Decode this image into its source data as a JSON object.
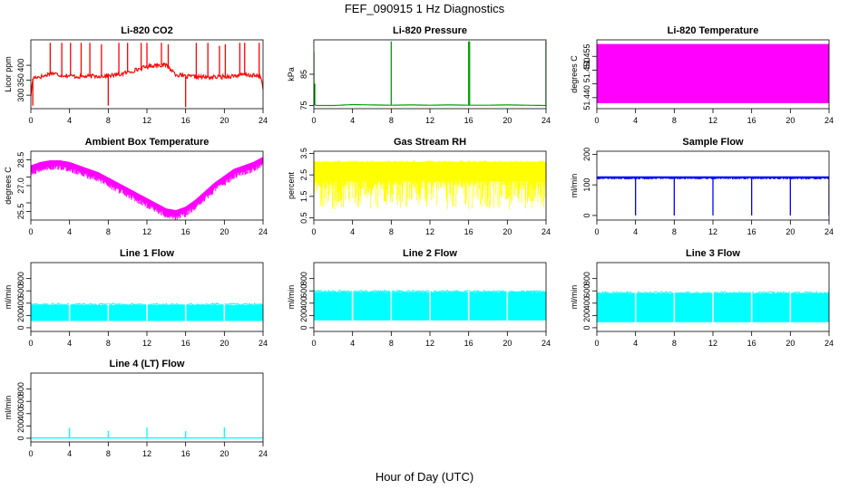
{
  "figure": {
    "title": "FEF_090915  1 Hz Diagnostics",
    "xlabel": "Hour of Day (UTC)"
  },
  "chart_data": [
    {
      "type": "line",
      "title": "Li-820 CO2",
      "ylabel": "Licor ppm",
      "xlabel": "",
      "xlim": [
        0,
        24
      ],
      "ylim": [
        255,
        485
      ],
      "xticks": [
        0,
        4,
        8,
        12,
        16,
        20,
        24
      ],
      "yticks": [
        300,
        350,
        400
      ],
      "color": "#ff0000",
      "series": [
        {
          "x": [
            0,
            0.2,
            0.4,
            1,
            1.5,
            2,
            3,
            4,
            5,
            6,
            7,
            8,
            9,
            10,
            11,
            12,
            13,
            14,
            15,
            16,
            17,
            18,
            19,
            20,
            21,
            22,
            23,
            23.8,
            24
          ],
          "y": [
            300,
            355,
            360,
            362,
            365,
            375,
            368,
            365,
            362,
            363,
            364,
            365,
            368,
            376,
            386,
            395,
            402,
            400,
            370,
            362,
            362,
            360,
            360,
            362,
            365,
            368,
            366,
            360,
            325
          ]
        }
      ],
      "spikes": [
        {
          "x": 0.2,
          "y": 265
        },
        {
          "x": 2.0,
          "y": 475
        },
        {
          "x": 3.2,
          "y": 475
        },
        {
          "x": 4.1,
          "y": 475
        },
        {
          "x": 5.2,
          "y": 475
        },
        {
          "x": 6.1,
          "y": 475
        },
        {
          "x": 7.3,
          "y": 470
        },
        {
          "x": 8.0,
          "y": 265
        },
        {
          "x": 9.1,
          "y": 475
        },
        {
          "x": 10.0,
          "y": 475
        },
        {
          "x": 11.4,
          "y": 475
        },
        {
          "x": 12.0,
          "y": 475
        },
        {
          "x": 13.5,
          "y": 475
        },
        {
          "x": 14.2,
          "y": 470
        },
        {
          "x": 16.0,
          "y": 260
        },
        {
          "x": 17.1,
          "y": 475
        },
        {
          "x": 18.3,
          "y": 475
        },
        {
          "x": 19.5,
          "y": 465
        },
        {
          "x": 20.1,
          "y": 470
        },
        {
          "x": 21.6,
          "y": 475
        },
        {
          "x": 22.1,
          "y": 475
        },
        {
          "x": 23.6,
          "y": 475
        }
      ]
    },
    {
      "type": "line",
      "title": "Li-820 Pressure",
      "ylabel": "kPa",
      "xlabel": "",
      "xlim": [
        0,
        24
      ],
      "ylim": [
        74,
        96
      ],
      "xticks": [
        0,
        4,
        8,
        12,
        16,
        20,
        24
      ],
      "yticks": [
        75,
        85
      ],
      "color": "#00a000",
      "series": [
        {
          "x": [
            0,
            0.3,
            2,
            4,
            6,
            8,
            10,
            12,
            14,
            16,
            18,
            20,
            22,
            24
          ],
          "y": [
            75.4,
            75.0,
            75.0,
            75.3,
            75.2,
            75.1,
            75.2,
            75.1,
            75.2,
            75.1,
            75.1,
            75.2,
            75.1,
            75.0
          ]
        }
      ],
      "spikes": [
        {
          "x": 0.0,
          "y": 92
        },
        {
          "x": 0.1,
          "y": 82
        },
        {
          "x": 8.0,
          "y": 95.5
        },
        {
          "x": 16.0,
          "y": 95.5
        },
        {
          "x": 16.1,
          "y": 95.5
        },
        {
          "x": 24.0,
          "y": 95.5
        }
      ]
    },
    {
      "type": "area",
      "title": "Li-820 Temperature",
      "ylabel": "degrees C",
      "xlabel": "",
      "xlim": [
        0,
        24
      ],
      "ylim": [
        51.436,
        51.461
      ],
      "xticks": [
        0,
        4,
        8,
        12,
        16,
        20,
        24
      ],
      "yticks": [
        51.44,
        51.445,
        51.45,
        51.455
      ],
      "ytick_labels": [
        "51.440",
        "",
        "51.450",
        "51.455"
      ],
      "color": "#ff00ff",
      "band": {
        "x": [
          0,
          24
        ],
        "low": 51.438,
        "high": 51.4595
      }
    },
    {
      "type": "line",
      "title": "Ambient Box Temperature",
      "ylabel": "degrees C",
      "xlabel": "",
      "xlim": [
        0,
        24
      ],
      "ylim": [
        25.0,
        29.0
      ],
      "xticks": [
        0,
        4,
        8,
        12,
        16,
        20,
        24
      ],
      "yticks": [
        25.5,
        26.0,
        27.0,
        27.5,
        28.5
      ],
      "ytick_labels": [
        "25.5",
        "",
        "27.0",
        "",
        "28.5"
      ],
      "color": "#ff00ff",
      "series": [
        {
          "x": [
            0,
            1,
            2,
            3,
            4,
            5,
            6,
            7,
            8,
            9,
            10,
            11,
            12,
            13,
            14,
            15,
            16,
            17,
            18,
            19,
            20,
            21,
            22,
            23,
            24
          ],
          "y": [
            28.0,
            28.2,
            28.3,
            28.3,
            28.2,
            28.0,
            27.8,
            27.6,
            27.3,
            27.0,
            26.7,
            26.4,
            26.1,
            25.8,
            25.5,
            25.4,
            25.6,
            26.0,
            26.5,
            27.0,
            27.4,
            27.8,
            28.0,
            28.2,
            28.5
          ]
        }
      ],
      "noise_amplitude": 0.35
    },
    {
      "type": "line",
      "title": "Gas Stream RH",
      "ylabel": "percent",
      "xlabel": "",
      "xlim": [
        0,
        24
      ],
      "ylim": [
        0.4,
        3.6
      ],
      "xticks": [
        0,
        4,
        8,
        12,
        16,
        20,
        24
      ],
      "yticks": [
        0.5,
        1.5,
        2.5,
        3.5
      ],
      "color": "#ffff00",
      "band": {
        "x": [
          0,
          24
        ],
        "low": 0.9,
        "high": 3.1
      },
      "dips": 60
    },
    {
      "type": "line",
      "title": "Sample Flow",
      "ylabel": "ml/min",
      "xlabel": "",
      "xlim": [
        0,
        24
      ],
      "ylim": [
        -15,
        210
      ],
      "xticks": [
        0,
        4,
        8,
        12,
        16,
        20,
        24
      ],
      "yticks": [
        0,
        100,
        200
      ],
      "color": "#0000ff",
      "series": [
        {
          "x": [
            0,
            24
          ],
          "y": [
            125,
            125
          ]
        }
      ],
      "noise_amplitude": 6,
      "spikes": [
        {
          "x": 4.0,
          "y": 0
        },
        {
          "x": 8.0,
          "y": 0
        },
        {
          "x": 12.0,
          "y": 0
        },
        {
          "x": 16.0,
          "y": 0
        },
        {
          "x": 20.0,
          "y": 0
        },
        {
          "x": 24.0,
          "y": 0
        }
      ]
    },
    {
      "type": "area",
      "title": "Line 1 Flow",
      "ylabel": "ml/min",
      "xlabel": "",
      "xlim": [
        0,
        24
      ],
      "ylim": [
        -60,
        1060
      ],
      "xticks": [
        0,
        4,
        8,
        12,
        16,
        20,
        24
      ],
      "yticks": [
        0,
        200,
        400,
        600,
        800
      ],
      "color": "#00ffff",
      "band": {
        "x": [
          0,
          24
        ],
        "low": 110,
        "high": 370
      },
      "gaps": [
        4,
        8,
        12,
        16,
        20
      ]
    },
    {
      "type": "area",
      "title": "Line 2 Flow",
      "ylabel": "ml/min",
      "xlabel": "",
      "xlim": [
        0,
        24
      ],
      "ylim": [
        -60,
        1060
      ],
      "xticks": [
        0,
        4,
        8,
        12,
        16,
        20,
        24
      ],
      "yticks": [
        0,
        200,
        400,
        600,
        800
      ],
      "color": "#00ffff",
      "band": {
        "x": [
          0,
          24
        ],
        "low": 120,
        "high": 580
      },
      "gaps": [
        4,
        8,
        12,
        16,
        20
      ]
    },
    {
      "type": "area",
      "title": "Line 3 Flow",
      "ylabel": "ml/min",
      "xlabel": "",
      "xlim": [
        0,
        24
      ],
      "ylim": [
        -60,
        1060
      ],
      "xticks": [
        0,
        4,
        8,
        12,
        16,
        20,
        24
      ],
      "yticks": [
        0,
        200,
        400,
        600,
        800
      ],
      "color": "#00ffff",
      "band": {
        "x": [
          0,
          24
        ],
        "low": 90,
        "high": 560
      },
      "gaps": [
        4,
        8,
        12,
        16,
        20
      ]
    },
    {
      "type": "line",
      "title": "Line 4 (LT) Flow",
      "ylabel": "ml/min",
      "xlabel": "",
      "xlim": [
        0,
        24
      ],
      "ylim": [
        -60,
        1060
      ],
      "xticks": [
        0,
        4,
        8,
        12,
        16,
        20,
        24
      ],
      "yticks": [
        0,
        200,
        400,
        600,
        800
      ],
      "color": "#00ffff",
      "series": [
        {
          "x": [
            0,
            24
          ],
          "y": [
            5,
            5
          ]
        }
      ],
      "spikes": [
        {
          "x": 4.0,
          "y": 170
        },
        {
          "x": 8.0,
          "y": 120
        },
        {
          "x": 12.0,
          "y": 175
        },
        {
          "x": 16.0,
          "y": 115
        },
        {
          "x": 20.0,
          "y": 175
        },
        {
          "x": 24.0,
          "y": 110
        }
      ]
    }
  ]
}
